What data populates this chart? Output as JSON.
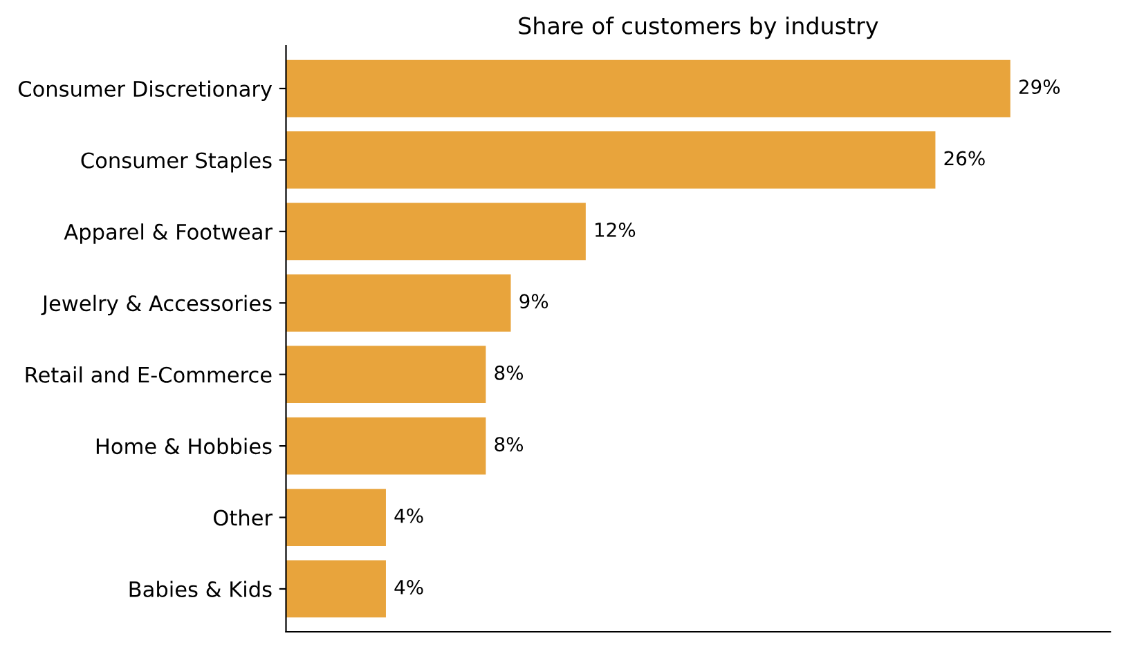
{
  "chart_data": {
    "type": "bar",
    "orientation": "horizontal",
    "title": "Share of customers by industry",
    "categories": [
      "Consumer Discretionary",
      "Consumer Staples",
      "Apparel & Footwear",
      "Jewelry & Accessories",
      "Retail and E-Commerce",
      "Home & Hobbies",
      "Other",
      "Babies & Kids"
    ],
    "values": [
      29,
      26,
      12,
      9,
      8,
      8,
      4,
      4
    ],
    "value_labels": [
      "29%",
      "26%",
      "12%",
      "9%",
      "8%",
      "8%",
      "4%",
      "4%"
    ],
    "color": "#e8a43c",
    "xlim": [
      0,
      33
    ],
    "tick_labels": "y",
    "grid": false,
    "legend": false
  }
}
